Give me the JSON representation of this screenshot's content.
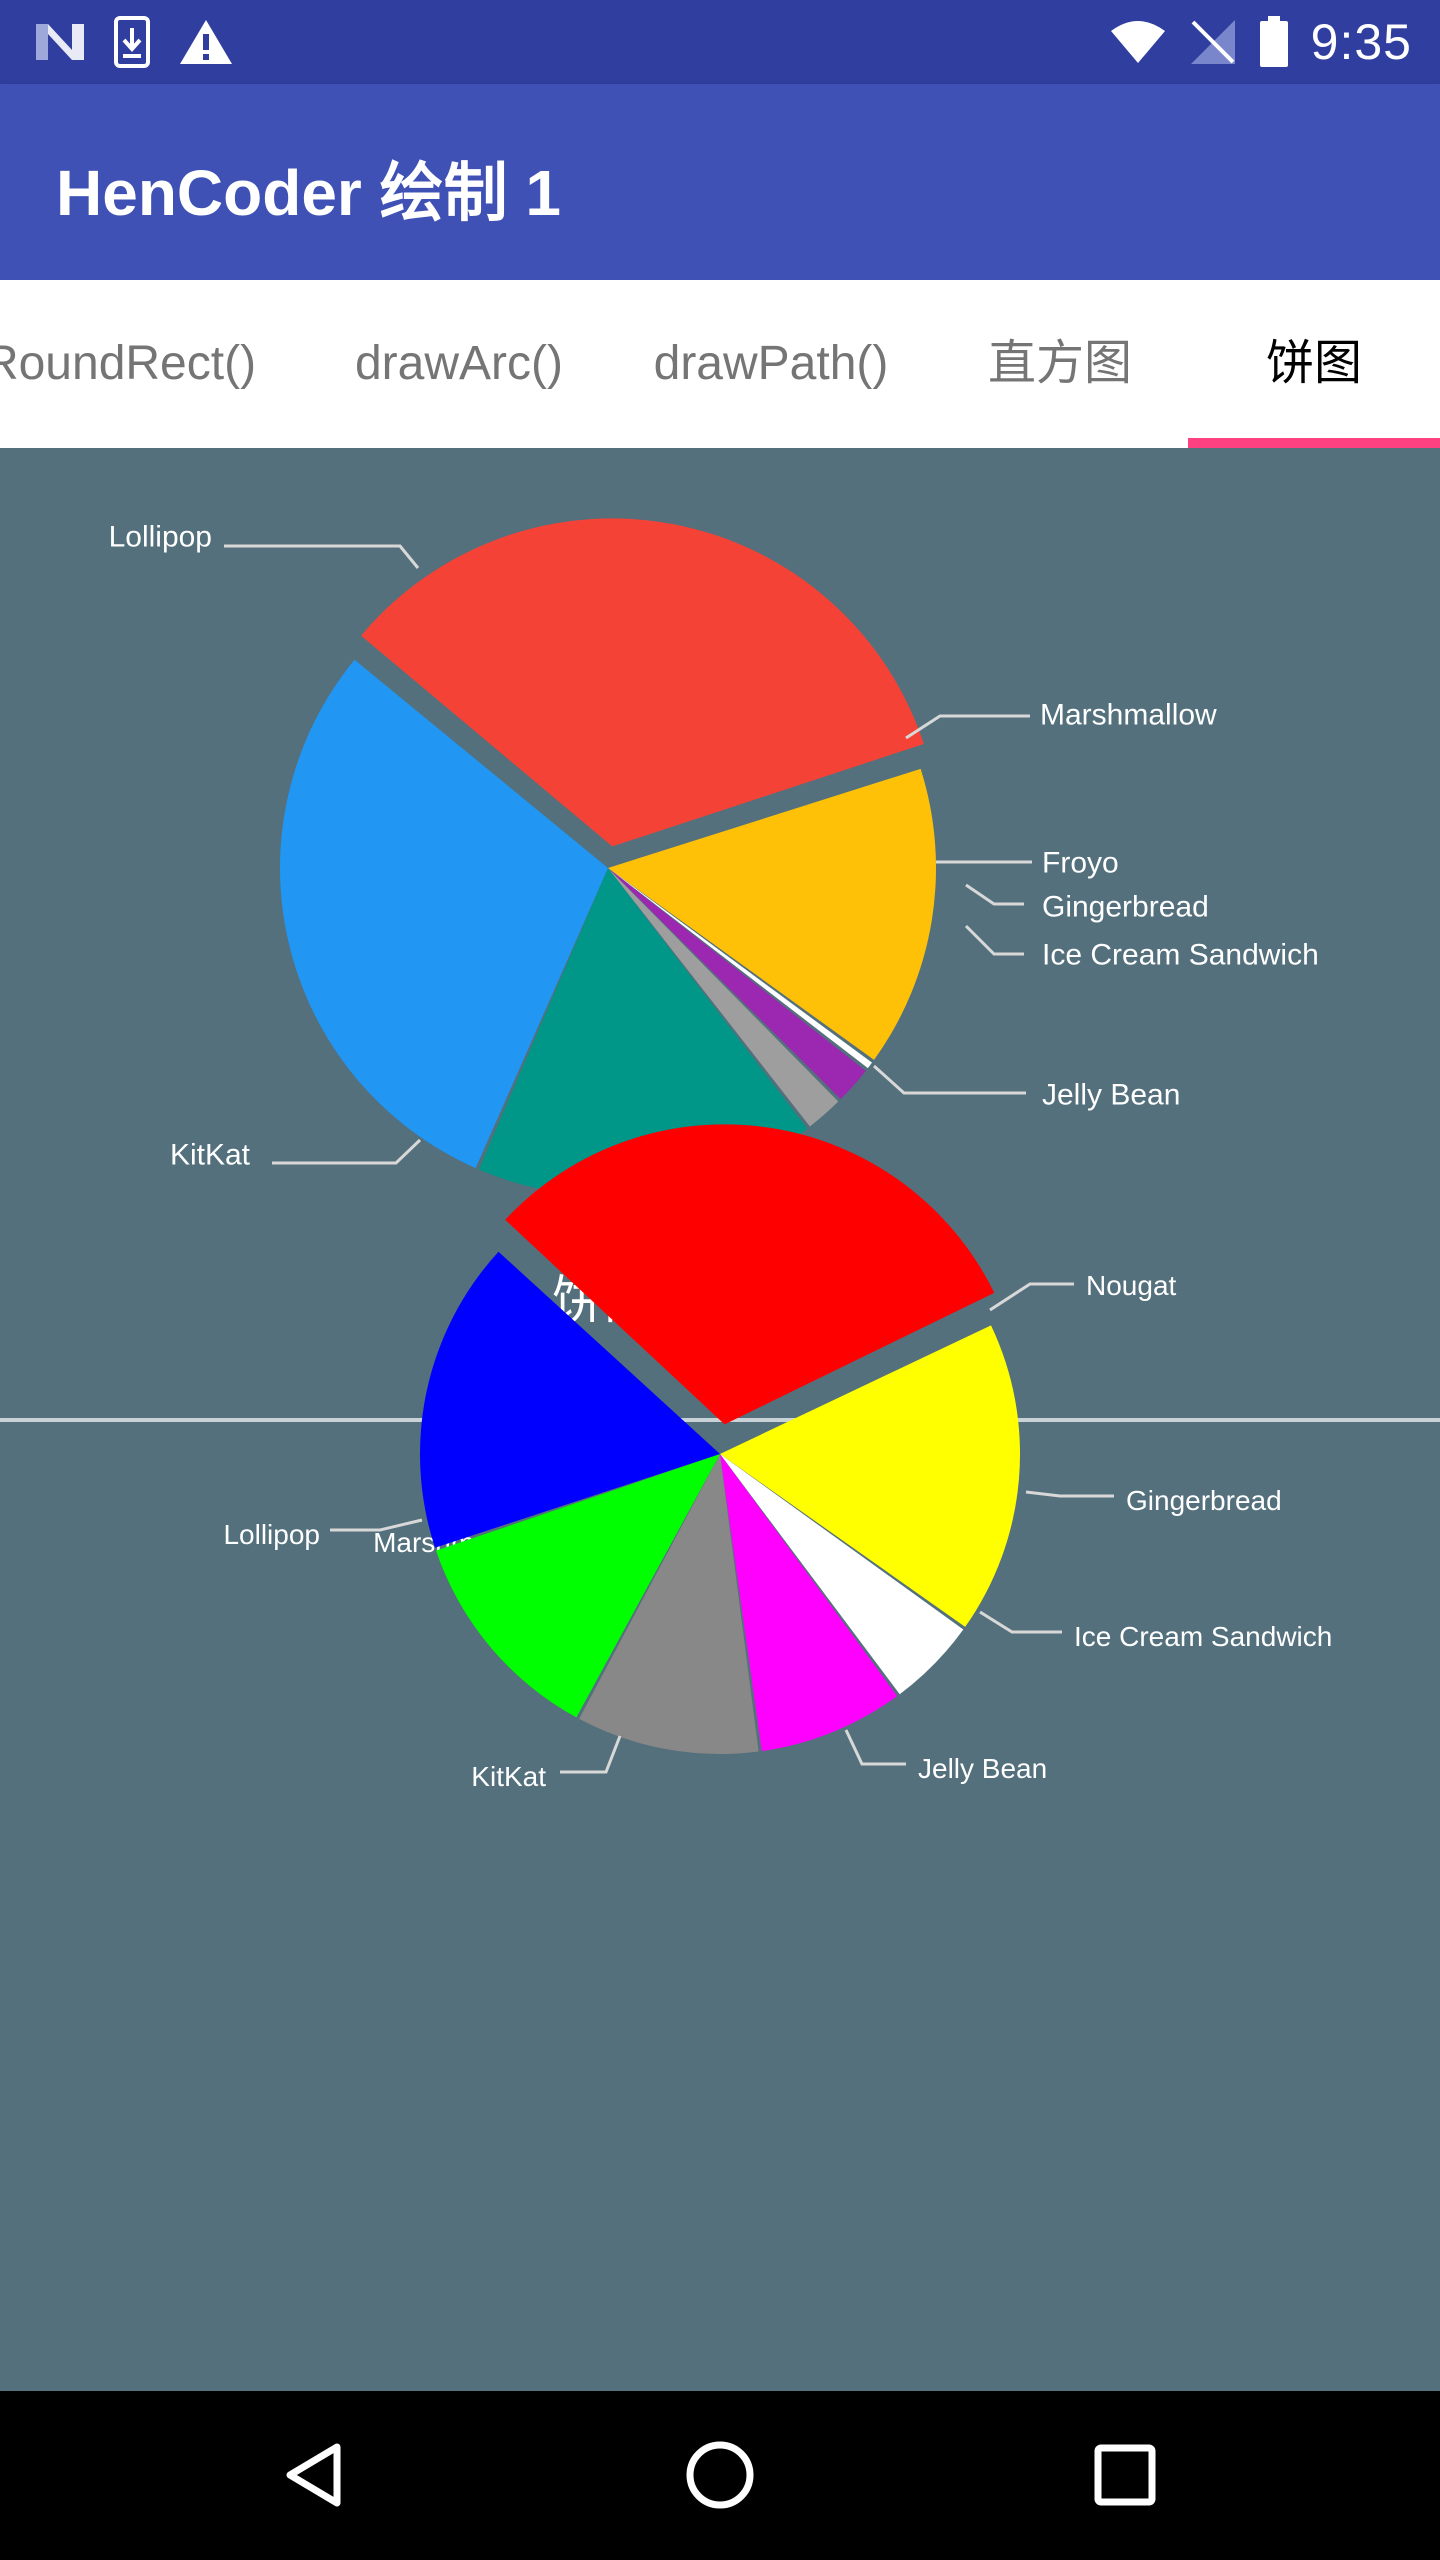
{
  "status_bar": {
    "time": "9:35",
    "left_icons": [
      "n-logo-icon",
      "download-icon",
      "warning-icon"
    ],
    "right_icons": [
      "wifi-icon",
      "no-sim-icon",
      "battery-icon"
    ]
  },
  "app_bar": {
    "title": "HenCoder 绘制 1"
  },
  "tabs": [
    {
      "label": "RoundRect()"
    },
    {
      "label": "drawArc()"
    },
    {
      "label": "drawPath()"
    },
    {
      "label": "直方图"
    },
    {
      "label": "饼图",
      "selected": true
    }
  ],
  "colors": {
    "status_bar": "#303F9F",
    "app_bar": "#3F51B5",
    "content_bg": "#53707C",
    "tab_indicator": "#FF4081",
    "label_line": "#D8D8D8"
  },
  "chart_data": [
    {
      "type": "pie",
      "title": "饼图",
      "slices": [
        {
          "label": "Lollipop",
          "value": 34,
          "color": "#F44336",
          "exploded": true
        },
        {
          "label": "Marshmallow",
          "value": 15,
          "color": "#FFC107"
        },
        {
          "label": "Froyo",
          "value": 0.5,
          "color": "#FFFFFF"
        },
        {
          "label": "Gingerbread",
          "value": 2,
          "color": "#9C27B0"
        },
        {
          "label": "Ice Cream Sandwich",
          "value": 2,
          "color": "#9E9E9E"
        },
        {
          "label": "Jelly Bean",
          "value": 17,
          "color": "#009688"
        },
        {
          "label": "KitKat",
          "value": 29.5,
          "color": "#2196F3"
        }
      ]
    },
    {
      "type": "pie",
      "slices": [
        {
          "label": "Marshmallow",
          "value": 31,
          "color": "#FF0000",
          "exploded": true
        },
        {
          "label": "Nougat",
          "value": 17,
          "color": "#FFFF00"
        },
        {
          "label": "Gingerbread",
          "value": 5,
          "color": "#FFFFFF"
        },
        {
          "label": "Ice Cream Sandwich",
          "value": 8,
          "color": "#FF00FF"
        },
        {
          "label": "Jelly Bean",
          "value": 10,
          "color": "#888888"
        },
        {
          "label": "KitKat",
          "value": 12,
          "color": "#00FF00"
        },
        {
          "label": "Lollipop",
          "value": 17,
          "color": "#0000FF"
        }
      ]
    }
  ],
  "nav_bar": {
    "icons": [
      "back-icon",
      "home-icon",
      "recents-icon"
    ]
  }
}
